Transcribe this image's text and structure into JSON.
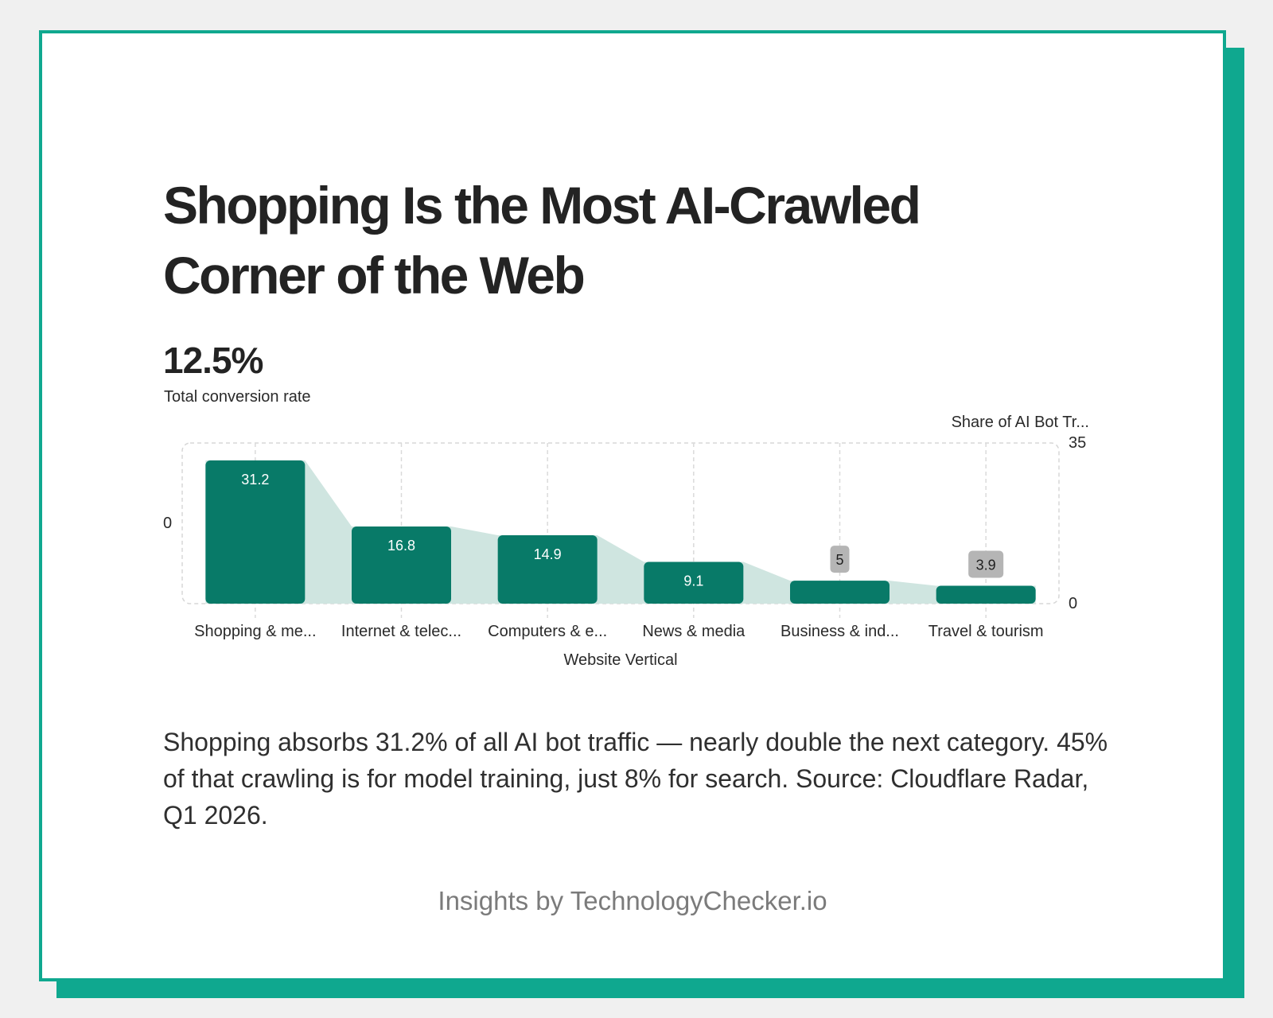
{
  "card": {
    "title": "Shopping Is the Most AI-Crawled Corner of the Web",
    "kpi_value": "12.5%",
    "kpi_label": "Total conversion rate",
    "caption": "Shopping absorbs 31.2% of all AI bot traffic — nearly double the next category. 45% of that crawling is for model training, just 8% for search. Source: Cloudflare Radar, Q1 2026.",
    "footer": "Insights by TechnologyChecker.io"
  },
  "colors": {
    "accent": "#0fa88f",
    "bar": "#087a68",
    "area": "#cfe5e0",
    "label_box": "#b5b5b5"
  },
  "chart_data": {
    "type": "bar",
    "categories": [
      "Shopping & me...",
      "Internet & telec...",
      "Computers & e...",
      "News & media",
      "Business & ind...",
      "Travel & tourism"
    ],
    "values": [
      31.2,
      16.8,
      14.9,
      9.1,
      5,
      3.9
    ],
    "xlabel": "Website Vertical",
    "ylabel": "Share of AI Bot Tr...",
    "ylim": [
      0,
      35
    ],
    "right_axis_ticks": [
      "35",
      "0"
    ],
    "left_axis_ticks": [
      "0"
    ],
    "grid": true,
    "area_fill_between_bars": true
  }
}
